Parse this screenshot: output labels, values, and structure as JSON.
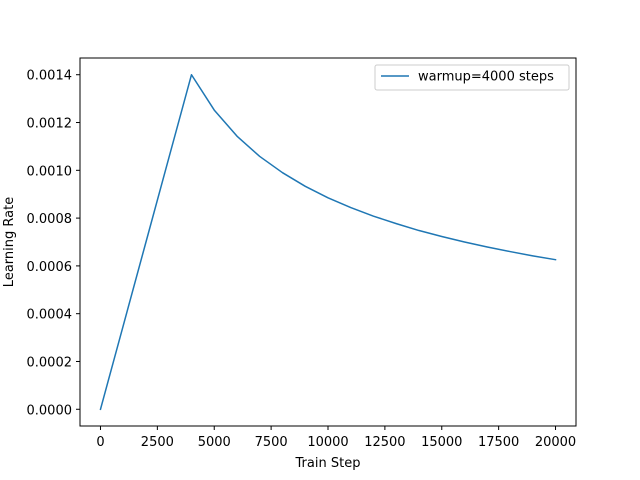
{
  "chart_data": {
    "type": "line",
    "title": "",
    "xlabel": "Train Step",
    "ylabel": "Learning Rate",
    "xlim": [
      -900,
      20900
    ],
    "ylim": [
      -7e-05,
      0.00147
    ],
    "xticks": [
      0,
      2500,
      5000,
      7500,
      10000,
      12500,
      15000,
      17500,
      20000
    ],
    "xtick_labels": [
      "0",
      "2500",
      "5000",
      "7500",
      "10000",
      "12500",
      "15000",
      "17500",
      "20000"
    ],
    "yticks": [
      0.0,
      0.0002,
      0.0004,
      0.0006,
      0.0008,
      0.001,
      0.0012,
      0.0014
    ],
    "ytick_labels": [
      "0.0000",
      "0.0002",
      "0.0004",
      "0.0006",
      "0.0008",
      "0.0010",
      "0.0012",
      "0.0014"
    ],
    "grid": false,
    "legend_position": "top-right",
    "series": [
      {
        "name": "warmup=4000 steps",
        "color": "#1f77b4",
        "x": [
          0,
          1000,
          2000,
          3000,
          4000,
          5000,
          6000,
          7000,
          8000,
          9000,
          10000,
          11000,
          12000,
          13000,
          14000,
          15000,
          16000,
          17000,
          18000,
          19000,
          20000
        ],
        "y": [
          0.0,
          0.00035,
          0.0007,
          0.00105,
          0.0014,
          0.001252,
          0.001143,
          0.001058,
          0.00099,
          0.000933,
          0.000885,
          0.000844,
          0.000808,
          0.000777,
          0.000748,
          0.000723,
          0.0007,
          0.000679,
          0.00066,
          0.000642,
          0.000626
        ]
      }
    ]
  }
}
